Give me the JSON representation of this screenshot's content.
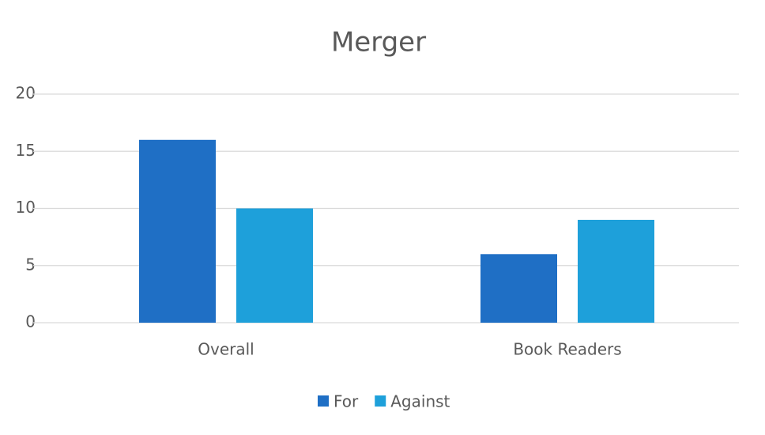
{
  "chart_data": {
    "type": "bar",
    "title": "Merger",
    "categories": [
      "Overall",
      "Book Readers"
    ],
    "series": [
      {
        "name": "For",
        "color": "#1f6fc5",
        "values": [
          16,
          6
        ]
      },
      {
        "name": "Against",
        "color": "#1ea0da",
        "values": [
          10,
          9
        ]
      }
    ],
    "ylim": [
      0,
      20
    ],
    "yticks": [
      0,
      5,
      10,
      15,
      20
    ],
    "grid": true,
    "legend": "bottom"
  }
}
